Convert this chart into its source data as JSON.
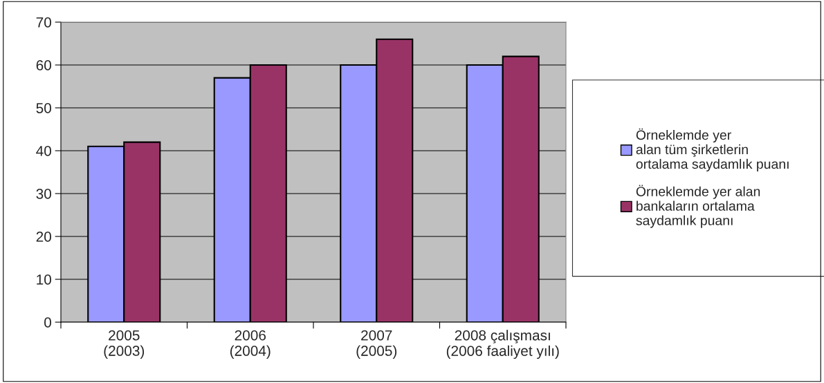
{
  "chart_data": {
    "type": "bar",
    "categories": [
      "2005\n(2003)",
      "2006\n(2004)",
      "2007\n(2005)",
      "2008 çalışması\n(2006 faaliyet yılı)"
    ],
    "series": [
      {
        "name": "Örneklemde yer\nalan tüm şirketlerin\nortalama saydamlık puanı",
        "color": "#9999ff",
        "values": [
          41,
          57,
          60,
          60
        ]
      },
      {
        "name": "Örneklemde yer alan\nbankaların ortalama\nsaydamlık puanı",
        "color": "#993366",
        "values": [
          42,
          60,
          66,
          62
        ]
      }
    ],
    "ylim": [
      0,
      70
    ],
    "yticks": [
      0,
      10,
      20,
      30,
      40,
      50,
      60,
      70
    ],
    "grid": "y",
    "legend": "right"
  }
}
